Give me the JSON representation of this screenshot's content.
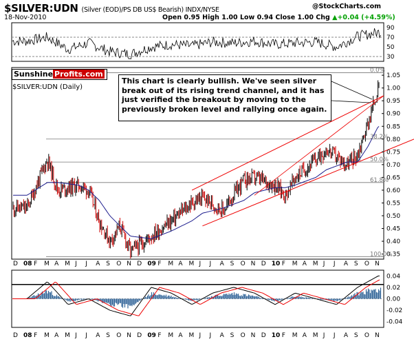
{
  "header": {
    "symbol": "$SILVER:UDN",
    "subtitle": "(Silver (EOD)/PS DB US$ Bearish)  INDX/NYSE",
    "date": "18-Nov-2010",
    "ohlc": "Open 0.95  High 1.00  Low 0.94  Close 1.00  Chg ",
    "change": "+0.04 (+4.59%)",
    "change_icon": "up-triangle-icon",
    "copyright": "@StockCharts.com"
  },
  "colors": {
    "price_up": "#000000",
    "price_down": "#cc0000",
    "ma": "#1a1a8c",
    "trend": "#ee0000",
    "macd_hist": "#336699",
    "logo_red": "#cc0000"
  },
  "logo": {
    "part1": "Sunshine",
    "part2": "Profits.com"
  },
  "main_label": "$SILVER:UDN (Daily)",
  "annotation": "This chart is clearly bullish. We've seen silver break out of its rising trend channel, and it has just verified the breakout by moving to the previously broken level and rallying once again.",
  "chart_data": [
    {
      "type": "line",
      "name": "RSI panel",
      "y_ticks": [
        90,
        70,
        50,
        30
      ],
      "reference_lines": [
        70,
        30
      ],
      "x_dates": [
        "2008-01",
        "2008-03",
        "2008-05",
        "2008-07",
        "2008-09",
        "2008-11",
        "2009-01",
        "2009-03",
        "2009-05",
        "2009-07",
        "2009-09",
        "2009-11",
        "2010-01",
        "2010-03",
        "2010-05",
        "2010-07",
        "2010-09",
        "2010-11"
      ],
      "values": [
        62,
        70,
        45,
        58,
        40,
        35,
        50,
        55,
        52,
        60,
        58,
        62,
        55,
        58,
        60,
        50,
        72,
        80
      ]
    },
    {
      "type": "line",
      "name": "$SILVER:UDN (Daily)",
      "ylim": [
        0.33,
        1.08
      ],
      "y_ticks": [
        1.05,
        1.0,
        0.95,
        0.9,
        0.85,
        0.8,
        0.75,
        0.7,
        0.65,
        0.6,
        0.55,
        0.5,
        0.45,
        0.4,
        0.35
      ],
      "x_ticks": [
        "D",
        "08",
        "F",
        "M",
        "A",
        "M",
        "J",
        "J",
        "A",
        "S",
        "O",
        "N",
        "D",
        "09",
        "F",
        "M",
        "A",
        "M",
        "J",
        "J",
        "A",
        "S",
        "O",
        "N",
        "D",
        "10",
        "F",
        "M",
        "A",
        "M",
        "J",
        "J",
        "A",
        "S",
        "O",
        "N"
      ],
      "x_dates": [
        "2008-01",
        "2008-03",
        "2008-04",
        "2008-06",
        "2008-07",
        "2008-08",
        "2008-09",
        "2008-10",
        "2008-11",
        "2009-01",
        "2009-03",
        "2009-05",
        "2009-06",
        "2009-08",
        "2009-10",
        "2009-11",
        "2010-01",
        "2010-02",
        "2010-03",
        "2010-05",
        "2010-06",
        "2010-08",
        "2010-09",
        "2010-10",
        "2010-11"
      ],
      "series": [
        {
          "values": [
            0.53,
            0.72,
            0.6,
            0.62,
            0.6,
            0.48,
            0.4,
            0.46,
            0.36,
            0.42,
            0.48,
            0.55,
            0.57,
            0.52,
            0.64,
            0.65,
            0.62,
            0.58,
            0.65,
            0.72,
            0.76,
            0.7,
            0.74,
            0.86,
            1.0
          ]
        },
        {
          "values": [
            0.58,
            0.63,
            0.63,
            0.62,
            0.6,
            0.56,
            0.5,
            0.46,
            0.42,
            0.41,
            0.44,
            0.48,
            0.51,
            0.53,
            0.56,
            0.59,
            0.61,
            0.61,
            0.62,
            0.65,
            0.68,
            0.71,
            0.71,
            0.77,
            0.85
          ]
        }
      ],
      "fib_levels": [
        {
          "label": "0.0%",
          "value": 1.06
        },
        {
          "label": "38.2%",
          "value": 0.8
        },
        {
          "label": "50.0%",
          "value": 0.71
        },
        {
          "label": "61.8%",
          "value": 0.63
        },
        {
          "label": "100.0%",
          "value": 0.34
        }
      ]
    },
    {
      "type": "line",
      "name": "MACD panel",
      "y_ticks": [
        0.04,
        0.02,
        0.0,
        -0.02,
        -0.04
      ],
      "x_ticks": [
        "D",
        "08",
        "F",
        "M",
        "A",
        "M",
        "J",
        "J",
        "A",
        "S",
        "O",
        "N",
        "D",
        "09",
        "F",
        "M",
        "A",
        "M",
        "J",
        "J",
        "A",
        "S",
        "O",
        "N",
        "D",
        "10",
        "F",
        "M",
        "A",
        "M",
        "J",
        "J",
        "A",
        "S",
        "O",
        "N"
      ],
      "x_dates": [
        "2008-01",
        "2008-03",
        "2008-05",
        "2008-07",
        "2008-09",
        "2008-11",
        "2009-01",
        "2009-03",
        "2009-05",
        "2009-07",
        "2009-09",
        "2009-11",
        "2010-01",
        "2010-03",
        "2010-05",
        "2010-07",
        "2010-09",
        "2010-11"
      ],
      "values": [
        0.0,
        0.03,
        -0.01,
        0.0,
        -0.02,
        -0.03,
        0.02,
        0.01,
        -0.01,
        0.01,
        0.02,
        0.01,
        -0.01,
        0.01,
        0.0,
        -0.01,
        0.02,
        0.04
      ]
    }
  ]
}
